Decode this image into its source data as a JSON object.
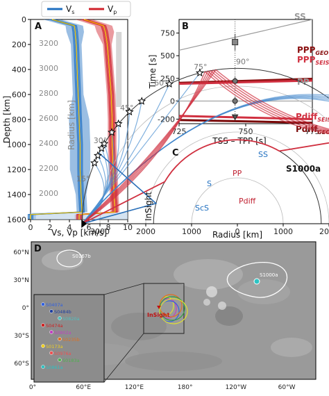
{
  "legend": {
    "vs": "V",
    "vs_sub": "s",
    "vp": "V",
    "vp_sub": "p"
  },
  "panels": {
    "A": {
      "letter": "A",
      "xlabel": "Vs, Vp [km/s]",
      "ylabel": "Depth [km]",
      "radius_label": "Radius [km]",
      "x_ticks": [
        "0",
        "2",
        "4",
        "6",
        "8",
        "10"
      ],
      "y_ticks": [
        "0",
        "200",
        "400",
        "600",
        "800",
        "1000",
        "1200",
        "1400",
        "1600"
      ],
      "radius_ticks": [
        "3200",
        "3000",
        "2800",
        "2600",
        "2400",
        "2200",
        "2000"
      ]
    },
    "B": {
      "letter": "B",
      "ylabel": "Time [s]",
      "xlabel": "TSS – TPP [s]",
      "x_ticks": [
        "725",
        "750",
        "775"
      ],
      "y_ticks": [
        "750",
        "500",
        "250",
        "0",
        "-200"
      ],
      "labels": {
        "ss": "SS",
        "ppp": "PPP",
        "ppp_geo": "GEO",
        "ppp_seis": "SEIS",
        "pp": "PP",
        "pdiff": "Pdiff",
        "pdiff_seis": "SEIS",
        "pdiff_geo": "GEO"
      }
    },
    "C": {
      "letter": "C",
      "xlabel": "Radius [km]",
      "insight": "InSight",
      "event": "S1000a",
      "x_ticks": [
        "3000",
        "2000",
        "1000",
        "0",
        "1000",
        "2000"
      ],
      "angle_ticks": [
        "15°",
        "30°",
        "45°",
        "60°",
        "75°",
        "90°"
      ],
      "rays": {
        "ss": "SS",
        "pp": "PP",
        "s": "S",
        "pdiff": "Pdiff",
        "scs": "ScS"
      }
    },
    "D": {
      "letter": "D",
      "lat_ticks": [
        "60°N",
        "30°N",
        "0°",
        "30°S",
        "60°S"
      ],
      "lon_ticks": [
        "0°",
        "60°E",
        "120°E",
        "180°",
        "120°W",
        "60°W"
      ],
      "insight": "InSight",
      "events": [
        "S1000a",
        "S0167b",
        "S0407a",
        "S0484b",
        "S0820a",
        "S0474a",
        "S0802a",
        "S0235b",
        "S0173a",
        "S0976a",
        "S0183a",
        "S0861a"
      ]
    }
  },
  "chart_data": [
    {
      "panel": "A",
      "type": "line",
      "title": "",
      "xlabel": "Vs, Vp [km/s]",
      "ylabel": "Depth [km]",
      "xlim": [
        0,
        10
      ],
      "ylim": [
        1600,
        0
      ],
      "series": [
        {
          "name": "Vs",
          "color": "#1f6fc0",
          "depth": [
            0,
            50,
            100,
            200,
            400,
            600,
            800,
            1000,
            1200,
            1400,
            1540,
            1560,
            1600
          ],
          "values": [
            2.2,
            4.5,
            4.6,
            4.7,
            4.8,
            4.9,
            5.0,
            5.1,
            5.1,
            5.2,
            5.3,
            0,
            0
          ]
        },
        {
          "name": "Vp",
          "color": "#d0202a",
          "depth": [
            0,
            50,
            100,
            200,
            400,
            600,
            800,
            1000,
            1200,
            1400,
            1540,
            1560,
            1600
          ],
          "values": [
            5.5,
            7.5,
            7.7,
            7.9,
            8.1,
            8.3,
            8.4,
            8.4,
            8.5,
            8.6,
            8.7,
            5.0,
            5.0
          ]
        }
      ]
    },
    {
      "panel": "B",
      "type": "line",
      "title": "",
      "xlabel": "TSS – TPP [s]",
      "ylabel": "Time [s]",
      "xlim": [
        725,
        775
      ],
      "ylim": [
        -250,
        900
      ],
      "series": [
        {
          "name": "SS",
          "x": [
            725,
            775
          ],
          "values": [
            560,
            930
          ]
        },
        {
          "name": "PPP GEO",
          "x": [
            725,
            775
          ],
          "values": [
            200,
            245
          ]
        },
        {
          "name": "PPP SEIS",
          "x": [
            725,
            775
          ],
          "values": [
            190,
            225
          ]
        },
        {
          "name": "PP",
          "x": [
            725,
            775
          ],
          "values": [
            0,
            0
          ]
        },
        {
          "name": "Pdiff SEIS",
          "x": [
            725,
            775
          ],
          "values": [
            -165,
            -200
          ]
        },
        {
          "name": "Pdiff GEO",
          "x": [
            725,
            775
          ],
          "values": [
            -210,
            -240
          ]
        }
      ],
      "observations": [
        {
          "x": 746,
          "y": 650
        },
        {
          "x": 746,
          "y": 220
        },
        {
          "x": 746,
          "y": 0
        },
        {
          "x": 746,
          "y": -175
        }
      ]
    },
    {
      "panel": "C",
      "type": "scatter",
      "title": "",
      "xlabel": "Radius [km]",
      "angles_deg": [
        15,
        30,
        45,
        60,
        75,
        90
      ]
    },
    {
      "panel": "D",
      "type": "scatter",
      "title": "",
      "lat_ticks": [
        "60°N",
        "30°N",
        "0°",
        "30°S",
        "60°S"
      ],
      "lon_ticks": [
        "0°",
        "60°E",
        "120°E",
        "180°",
        "120°W",
        "60°W"
      ]
    }
  ]
}
